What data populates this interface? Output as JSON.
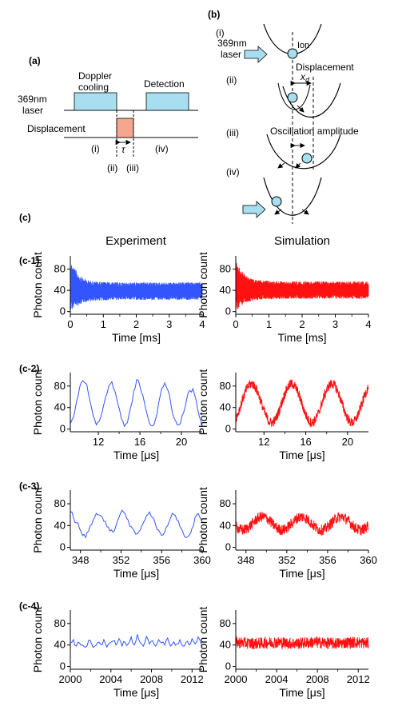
{
  "panel_a": {
    "label": "(a)",
    "laser_label_1": "369nm",
    "laser_label_2": "laser",
    "cooling_label_1": "Doppler",
    "cooling_label_2": "cooling",
    "detection_label": "Detection",
    "displacement_label": "Displacement",
    "tau_label": "τ",
    "stage_i": "(i)",
    "stage_ii": "(ii)",
    "stage_iii": "(iii)",
    "stage_iv": "(iv)",
    "cooling_color": "#a8dff0",
    "displacement_color": "#f4a78f"
  },
  "panel_b": {
    "label": "(b)",
    "stage_i": "(i)",
    "stage_ii": "(ii)",
    "stage_iii": "(iii)",
    "stage_iv": "(iv)",
    "laser_label_1": "369nm",
    "laser_label_2": "laser",
    "ion_label": "Ion",
    "displacement_label": "Displacement",
    "xd_symbol": "x",
    "xd_sub": "d",
    "oscillation_label": "Oscillation amplitude",
    "ion_color": "#a8dff0"
  },
  "panel_c": {
    "label": "(c)",
    "col_experiment": "Experiment",
    "col_simulation": "Simulation",
    "experiment_color": "#3355ff",
    "simulation_color": "#ff1111"
  },
  "chart_data": [
    {
      "id": "c-1-experiment",
      "row_label": "(c-1)",
      "type": "line",
      "xlabel": "Time [ms]",
      "ylabel": "Photon count",
      "xlim": [
        0,
        4
      ],
      "ylim": [
        -5,
        105
      ],
      "xticks": [
        0,
        1,
        2,
        3,
        4
      ],
      "xtick_labels": [
        "0",
        "1",
        "2",
        "3",
        "4"
      ],
      "yticks": [
        0,
        40,
        80
      ],
      "ytick_labels": [
        "0",
        "40",
        "80"
      ],
      "series": [
        {
          "mode": "band",
          "x": [
            0,
            0.1,
            0.2,
            0.3,
            0.4,
            0.5,
            0.7,
            1.0,
            1.5,
            2.0,
            2.5,
            3.0,
            3.5,
            4.0
          ],
          "min": [
            0,
            5,
            10,
            14,
            16,
            18,
            20,
            21,
            22,
            22,
            22,
            22,
            22,
            22
          ],
          "max": [
            95,
            85,
            75,
            68,
            63,
            60,
            57,
            56,
            55,
            55,
            55,
            55,
            55,
            55
          ]
        }
      ]
    },
    {
      "id": "c-1-simulation",
      "row_label": "",
      "type": "line",
      "xlabel": "Time [ms]",
      "ylabel": "Photon count",
      "xlim": [
        0,
        4
      ],
      "ylim": [
        -5,
        105
      ],
      "xticks": [
        0,
        1,
        2,
        3,
        4
      ],
      "xtick_labels": [
        "0",
        "1",
        "2",
        "3",
        "4"
      ],
      "yticks": [
        0,
        40,
        80
      ],
      "ytick_labels": [
        "0",
        "40",
        "80"
      ],
      "series": [
        {
          "mode": "band",
          "x": [
            0,
            0.1,
            0.2,
            0.3,
            0.4,
            0.5,
            0.7,
            1.0,
            1.5,
            2.0,
            2.5,
            3.0,
            3.5,
            4.0
          ],
          "min": [
            2,
            6,
            12,
            16,
            18,
            20,
            22,
            23,
            24,
            24,
            24,
            24,
            24,
            24
          ],
          "max": [
            95,
            85,
            75,
            68,
            64,
            61,
            59,
            58,
            57,
            57,
            57,
            57,
            57,
            57
          ]
        }
      ]
    },
    {
      "id": "c-2-experiment",
      "row_label": "(c-2)",
      "type": "line",
      "xlabel": "Time [μs]",
      "ylabel": "Photon count",
      "xlim": [
        9.3,
        22
      ],
      "ylim": [
        -5,
        105
      ],
      "xticks": [
        12,
        16,
        20
      ],
      "xtick_labels": [
        "12",
        "16",
        "20"
      ],
      "yticks": [
        0,
        40,
        80
      ],
      "ytick_labels": [
        "0",
        "40",
        "80"
      ],
      "series": [
        {
          "mode": "line",
          "x": [
            9.3,
            9.6,
            9.9,
            10.2,
            10.5,
            10.8,
            11.0,
            11.2,
            11.5,
            11.8,
            12.1,
            12.4,
            12.7,
            13.0,
            13.3,
            13.6,
            13.9,
            14.2,
            14.5,
            14.8,
            15.1,
            15.4,
            15.7,
            16.0,
            16.3,
            16.6,
            16.9,
            17.2,
            17.5,
            17.8,
            18.1,
            18.4,
            18.7,
            19.0,
            19.3,
            19.6,
            19.9,
            20.2,
            20.5,
            20.8,
            21.1,
            21.4,
            21.7,
            22.0
          ],
          "y": [
            10,
            22,
            52,
            78,
            90,
            85,
            70,
            52,
            25,
            8,
            15,
            35,
            60,
            80,
            88,
            70,
            45,
            20,
            5,
            12,
            40,
            70,
            92,
            80,
            62,
            35,
            12,
            6,
            18,
            48,
            76,
            86,
            72,
            45,
            20,
            8,
            10,
            30,
            55,
            72,
            75,
            55,
            25,
            8
          ]
        }
      ]
    },
    {
      "id": "c-2-simulation",
      "row_label": "",
      "type": "line",
      "xlabel": "Time [μs]",
      "ylabel": "Photon count",
      "xlim": [
        9.3,
        22
      ],
      "ylim": [
        -5,
        105
      ],
      "xticks": [
        12,
        16,
        20
      ],
      "xtick_labels": [
        "12",
        "16",
        "20"
      ],
      "yticks": [
        0,
        40,
        80
      ],
      "ytick_labels": [
        "0",
        "40",
        "80"
      ],
      "series": [
        {
          "mode": "band",
          "period": 3.85,
          "phase": 10.8,
          "center": 48,
          "amp": 36,
          "noise": 9
        }
      ]
    },
    {
      "id": "c-3-experiment",
      "row_label": "(c-3)",
      "type": "line",
      "xlabel": "Time [μs]",
      "ylabel": "Photon count",
      "xlim": [
        347,
        360
      ],
      "ylim": [
        -5,
        105
      ],
      "xticks": [
        348,
        352,
        356,
        360
      ],
      "xtick_labels": [
        "348",
        "352",
        "356",
        "360"
      ],
      "yticks": [
        0,
        40,
        80
      ],
      "ytick_labels": [
        "0",
        "40",
        "80"
      ],
      "series": [
        {
          "mode": "line",
          "x": [
            347.0,
            347.3,
            347.6,
            347.9,
            348.2,
            348.5,
            348.8,
            349.1,
            349.4,
            349.7,
            350.0,
            350.3,
            350.6,
            350.9,
            351.2,
            351.5,
            351.8,
            352.1,
            352.4,
            352.7,
            353.0,
            353.3,
            353.6,
            353.9,
            354.2,
            354.5,
            354.8,
            355.1,
            355.4,
            355.7,
            356.0,
            356.3,
            356.6,
            356.9,
            357.2,
            357.5,
            357.8,
            358.1,
            358.4,
            358.7,
            359.0,
            359.3,
            359.6,
            360.0
          ],
          "y": [
            65,
            55,
            45,
            35,
            22,
            18,
            30,
            42,
            55,
            60,
            58,
            48,
            38,
            30,
            28,
            40,
            55,
            68,
            62,
            50,
            38,
            30,
            25,
            32,
            45,
            58,
            65,
            55,
            42,
            32,
            22,
            28,
            40,
            55,
            60,
            50,
            38,
            28,
            18,
            22,
            35,
            55,
            62,
            50
          ]
        }
      ]
    },
    {
      "id": "c-3-simulation",
      "row_label": "",
      "type": "line",
      "xlabel": "Time [μs]",
      "ylabel": "Photon count",
      "xlim": [
        347,
        360
      ],
      "ylim": [
        -5,
        105
      ],
      "xticks": [
        348,
        352,
        356,
        360
      ],
      "xtick_labels": [
        "348",
        "352",
        "356",
        "360"
      ],
      "yticks": [
        0,
        40,
        80
      ],
      "ytick_labels": [
        "0",
        "40",
        "80"
      ],
      "series": [
        {
          "mode": "band",
          "period": 3.85,
          "phase": 349.6,
          "center": 44,
          "amp": 12,
          "noise": 10
        }
      ]
    },
    {
      "id": "c-4-experiment",
      "row_label": "(c-4)",
      "type": "line",
      "xlabel": "Time [μs]",
      "ylabel": "Photon count",
      "xlim": [
        2000,
        2013
      ],
      "ylim": [
        -5,
        105
      ],
      "xticks": [
        2000,
        2004,
        2008,
        2012
      ],
      "xtick_labels": [
        "2000",
        "2004",
        "2008",
        "2012"
      ],
      "yticks": [
        0,
        40,
        80
      ],
      "ytick_labels": [
        "0",
        "40",
        "80"
      ],
      "series": [
        {
          "mode": "line",
          "x": [
            2000.0,
            2000.3,
            2000.6,
            2000.9,
            2001.2,
            2001.5,
            2001.8,
            2002.1,
            2002.4,
            2002.7,
            2003.0,
            2003.3,
            2003.6,
            2003.9,
            2004.2,
            2004.5,
            2004.8,
            2005.1,
            2005.4,
            2005.7,
            2006.0,
            2006.3,
            2006.6,
            2006.9,
            2007.2,
            2007.5,
            2007.8,
            2008.1,
            2008.4,
            2008.7,
            2009.0,
            2009.3,
            2009.6,
            2009.9,
            2010.2,
            2010.5,
            2010.8,
            2011.1,
            2011.4,
            2011.7,
            2012.0,
            2012.3,
            2012.6,
            2013.0
          ],
          "y": [
            45,
            50,
            38,
            44,
            40,
            36,
            48,
            42,
            38,
            45,
            41,
            50,
            36,
            44,
            47,
            40,
            52,
            38,
            45,
            42,
            55,
            40,
            60,
            44,
            38,
            56,
            42,
            48,
            38,
            50,
            44,
            40,
            53,
            38,
            46,
            42,
            50,
            38,
            45,
            40,
            52,
            42,
            55,
            36
          ]
        }
      ]
    },
    {
      "id": "c-4-simulation",
      "row_label": "",
      "type": "line",
      "xlabel": "Time [μs]",
      "ylabel": "Photon count",
      "xlim": [
        2000,
        2013
      ],
      "ylim": [
        -5,
        105
      ],
      "xticks": [
        2000,
        2004,
        2008,
        2012
      ],
      "xtick_labels": [
        "2000",
        "2004",
        "2008",
        "2012"
      ],
      "yticks": [
        0,
        40,
        80
      ],
      "ytick_labels": [
        "0",
        "40",
        "80"
      ],
      "series": [
        {
          "mode": "band",
          "period": 3.85,
          "phase": 2000,
          "center": 44,
          "amp": 1,
          "noise": 11
        }
      ]
    }
  ]
}
